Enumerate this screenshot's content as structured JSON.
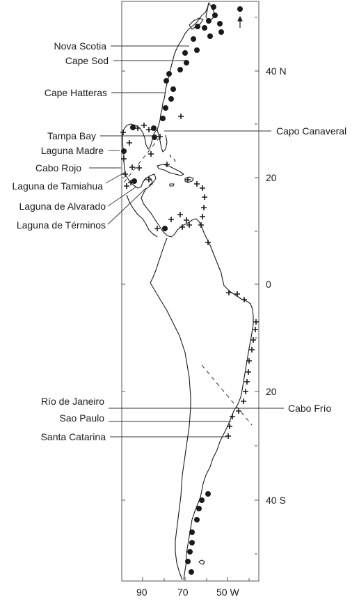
{
  "map": {
    "lat_labels": [
      "40 N",
      "20",
      "0",
      "20",
      "40 S"
    ],
    "lon_labels": [
      "90",
      "70",
      "50 W"
    ],
    "places": {
      "nova_scotia": "Nova Scotia",
      "cape_sod": "Cape Sod",
      "cape_hatteras": "Cape Hatteras",
      "tampa_bay": "Tampa Bay",
      "laguna_madre": "Laguna Madre",
      "cabo_rojo": "Cabo Rojo",
      "laguna_tamiahua": "Laguna de Tamiahua",
      "laguna_alvarado": "Laguna de Alvarado",
      "laguna_terminos": "Laguna de Términos",
      "capo_canaveral": "Capo Canaveral",
      "rio_de_janeiro": "Río de Janeiro",
      "sao_paulo": "Sao Paulo",
      "santa_catarina": "Santa Catarina",
      "cabo_frio": "Cabo Frío"
    },
    "symbols": {
      "dot": "filled-circle",
      "cross": "plus-sign",
      "arrow": "north-arrow"
    },
    "colors": {
      "ink": "#1a1a1a",
      "frame": "#555555",
      "background": "#ffffff"
    }
  }
}
